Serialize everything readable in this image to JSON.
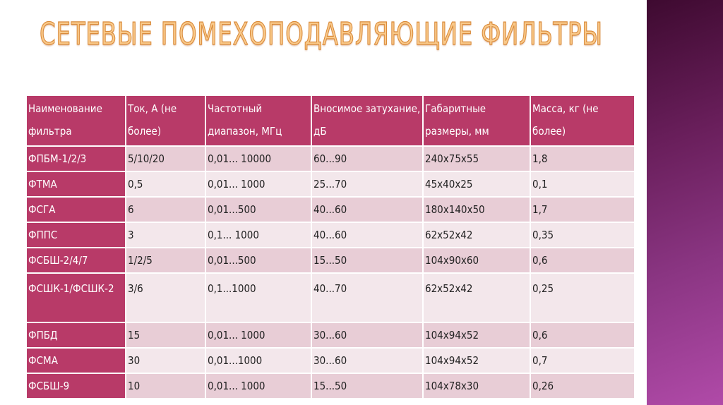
{
  "title": "СЕТЕВЫЕ ПОМЕХОПОДАВЛЯЮЩИЕ ФИЛЬТРЫ",
  "colors": {
    "header": "#b83a68",
    "row_dark": "#e8cdd6",
    "row_light": "#f3e7eb",
    "title": "#f9c98a",
    "side_panel": "#8a3582"
  },
  "table": {
    "headers": [
      "Наименование фильтра",
      "Ток, А (не более)",
      "Частотный диапазон, МГц",
      "Вносимое затухание, дБ",
      "Габаритные размеры, мм",
      "Масса, кг (не более)"
    ],
    "rows": [
      [
        "ФПБМ-1/2/3",
        "5/10/20",
        "0,01... 10000",
        "60...90",
        "240x75x55",
        "1,8"
      ],
      [
        "ФТМА",
        "0,5",
        "0,01... 1000",
        "25...70",
        "45x40x25",
        "0,1"
      ],
      [
        "ФСГА",
        "6",
        "0,01...500",
        "40...60",
        "180x140x50",
        "1,7"
      ],
      [
        "ФППС",
        "3",
        "0,1... 1000",
        "40...60",
        "62x52x42",
        "0,35"
      ],
      [
        "ФСБШ-2/4/7",
        "1/2/5",
        "0,01...500",
        "15...50",
        "104x90x60",
        "0,6"
      ],
      [
        "ФСШК-1/ФСШК-2",
        "3/6",
        "0,1...1000",
        "40...70",
        "62x52x42",
        "0,25"
      ],
      [
        "ФПБД",
        "15",
        "0,01... 1000",
        "30...60",
        "104x94x52",
        "0,6"
      ],
      [
        "ФСМА",
        "30",
        "0,01...1000",
        "30...60",
        "104x94x52",
        "0,7"
      ],
      [
        "ФСБШ-9",
        "10",
        "0,01... 1000",
        "15...50",
        "104x78x30",
        "0,26"
      ]
    ]
  }
}
